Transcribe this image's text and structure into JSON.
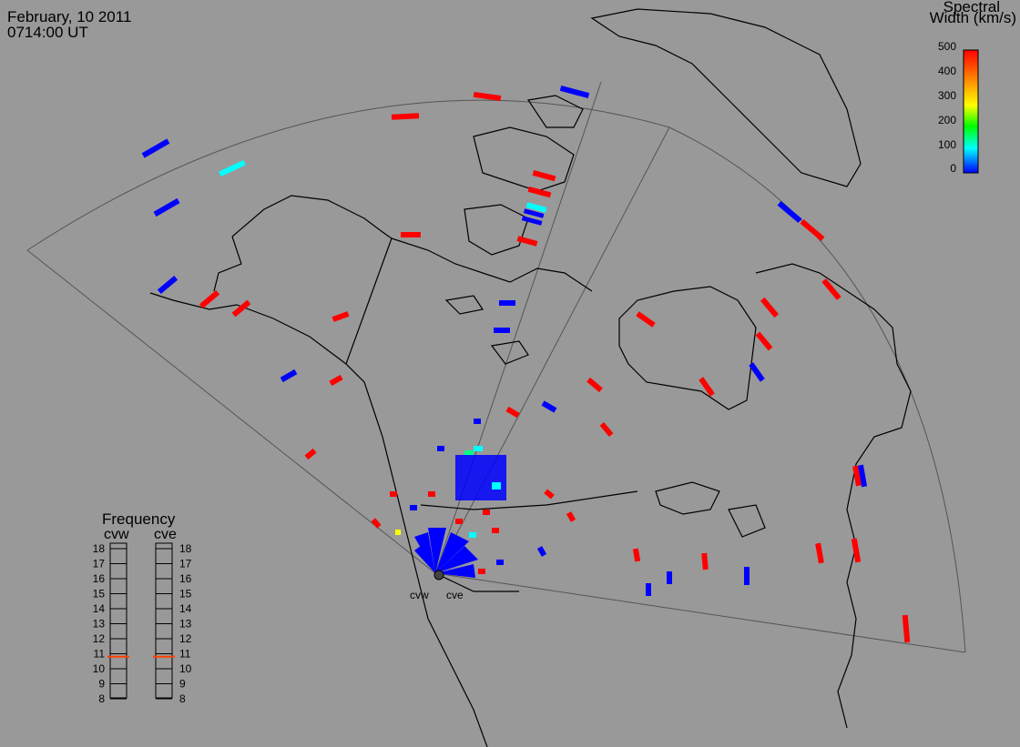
{
  "header": {
    "date": "February, 10 2011",
    "time": "0714:00 UT"
  },
  "colorbar": {
    "title_line1": "Spectral",
    "title_line2": "Width (km/s)",
    "ticks": [
      "500",
      "400",
      "300",
      "200",
      "100",
      "0"
    ],
    "gradient": [
      "#ff0000",
      "#ff8c00",
      "#ffff00",
      "#00ff00",
      "#00ffff",
      "#0000ff"
    ]
  },
  "radars": [
    {
      "id": "cvw",
      "label": "cvw"
    },
    {
      "id": "cve",
      "label": "cve"
    }
  ],
  "frequency_panel": {
    "title": "Frequency",
    "left_label": "cvw",
    "right_label": "cve",
    "scale": [
      "18",
      "17",
      "16",
      "15",
      "14",
      "13",
      "12",
      "11",
      "10",
      "9",
      "8"
    ],
    "cvw_mhz": 10.8,
    "cve_mhz": 10.8,
    "marker_color": "#ff4000"
  },
  "colors": {
    "background": "#999999",
    "coastline": "#000000",
    "fov_outline": "#555555",
    "low_width": "#0000ff",
    "high_width": "#ff0000",
    "mid_width": "#00ffff"
  }
}
